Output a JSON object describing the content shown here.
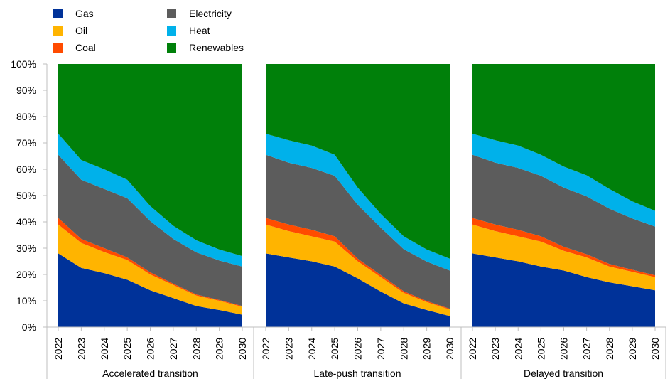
{
  "chart_data": {
    "type": "area",
    "stacked": true,
    "legend_position": "top-left",
    "ylim": [
      0,
      100
    ],
    "y_ticks": [
      "0%",
      "10%",
      "20%",
      "30%",
      "40%",
      "50%",
      "60%",
      "70%",
      "80%",
      "90%",
      "100%"
    ],
    "x": [
      "2022",
      "2023",
      "2024",
      "2025",
      "2026",
      "2027",
      "2028",
      "2029",
      "2030"
    ],
    "series_meta": [
      {
        "name": "Gas",
        "color": "#003299"
      },
      {
        "name": "Oil",
        "color": "#FFB400"
      },
      {
        "name": "Coal",
        "color": "#FF4B00"
      },
      {
        "name": "Electricity",
        "color": "#5C5C5C"
      },
      {
        "name": "Heat",
        "color": "#00B1EA"
      },
      {
        "name": "Renewables",
        "color": "#00800A"
      }
    ],
    "panels": [
      {
        "title": "Accelerated transition",
        "series": [
          {
            "name": "Gas",
            "values": [
              28,
              22.5,
              20.5,
              18,
              14,
              11,
              8,
              6.5,
              4.7
            ]
          },
          {
            "name": "Oil",
            "values": [
              11,
              9.5,
              8,
              7.5,
              6,
              5,
              4,
              3.5,
              3
            ]
          },
          {
            "name": "Coal",
            "values": [
              2.5,
              1.5,
              1.5,
              1,
              0.8,
              0.5,
              0.4,
              0.3,
              0.3
            ]
          },
          {
            "name": "Electricity",
            "values": [
              24,
              22.5,
              22.5,
              22.5,
              19.5,
              17,
              16,
              15,
              15
            ]
          },
          {
            "name": "Heat",
            "values": [
              8,
              7.5,
              7.5,
              7,
              5.7,
              5,
              4.6,
              4.2,
              4
            ]
          },
          {
            "name": "Renewables",
            "values": [
              26.5,
              36.5,
              40,
              44,
              54,
              61.5,
              67,
              70.5,
              73
            ]
          }
        ]
      },
      {
        "title": "Late-push transition",
        "series": [
          {
            "name": "Gas",
            "values": [
              28,
              26.5,
              25,
              23,
              18.5,
              13.5,
              9,
              6.5,
              4.2
            ]
          },
          {
            "name": "Oil",
            "values": [
              11,
              10,
              9.5,
              9.5,
              6.5,
              5.5,
              4,
              3,
              2.5
            ]
          },
          {
            "name": "Coal",
            "values": [
              2.5,
              2.5,
              2.5,
              2,
              1,
              0.8,
              0.6,
              0.4,
              0.3
            ]
          },
          {
            "name": "Electricity",
            "values": [
              24,
              23.5,
              23.5,
              23,
              20.5,
              18,
              16,
              15,
              14.5
            ]
          },
          {
            "name": "Heat",
            "values": [
              8,
              8.5,
              8.5,
              8,
              6.5,
              5.2,
              4.9,
              4.6,
              4.5
            ]
          },
          {
            "name": "Renewables",
            "values": [
              26.5,
              29,
              31,
              34.5,
              47,
              57,
              65.5,
              70.5,
              74
            ]
          }
        ]
      },
      {
        "title": "Delayed transition",
        "series": [
          {
            "name": "Gas",
            "values": [
              28,
              26.5,
              25,
              23,
              21.5,
              19,
              17,
              15.5,
              14
            ]
          },
          {
            "name": "Oil",
            "values": [
              11,
              10,
              9.5,
              9.5,
              7.5,
              7.5,
              6,
              5.5,
              5
            ]
          },
          {
            "name": "Coal",
            "values": [
              2.5,
              2.5,
              2.5,
              2,
              1.5,
              1.2,
              1,
              0.8,
              0.7
            ]
          },
          {
            "name": "Electricity",
            "values": [
              24,
              23.5,
              23.5,
              23,
              22.5,
              22,
              21,
              19.5,
              18.5
            ]
          },
          {
            "name": "Heat",
            "values": [
              8,
              8.5,
              8.5,
              8,
              8,
              8,
              7.5,
              6.5,
              6
            ]
          },
          {
            "name": "Renewables",
            "values": [
              26.5,
              29,
              31,
              34.5,
              39,
              42.3,
              47.5,
              52.2,
              55.8
            ]
          }
        ]
      }
    ]
  }
}
